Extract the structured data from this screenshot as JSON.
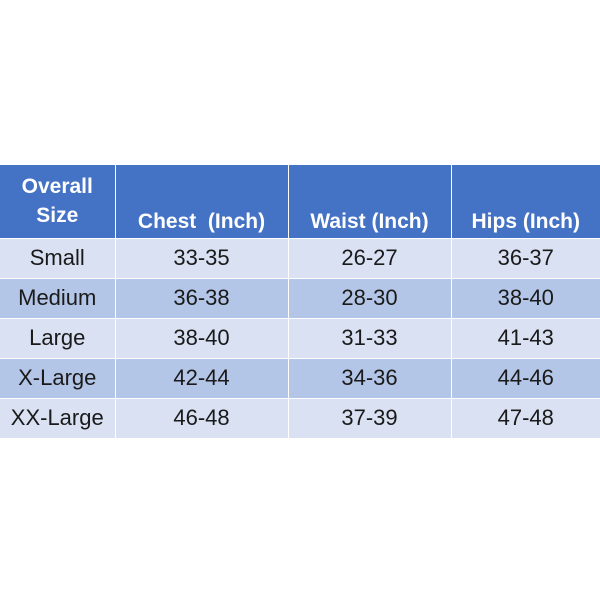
{
  "table": {
    "header": {
      "size_line1": "Overall",
      "size_line2": "Size",
      "chest": "Chest  (Inch)",
      "waist": "Waist (Inch)",
      "hips": "Hips (Inch)"
    },
    "rows": [
      {
        "size": "Small",
        "chest": "33-35",
        "waist": "26-27",
        "hips": "36-37"
      },
      {
        "size": "Medium",
        "chest": "36-38",
        "waist": "28-30",
        "hips": "38-40"
      },
      {
        "size": "Large",
        "chest": "38-40",
        "waist": "31-33",
        "hips": "41-43"
      },
      {
        "size": "X-Large",
        "chest": "42-44",
        "waist": "34-36",
        "hips": "44-46"
      },
      {
        "size": "XX-Large",
        "chest": "46-48",
        "waist": "37-39",
        "hips": "47-48"
      }
    ]
  },
  "colors": {
    "header_bg": "#4472c4",
    "row_light": "#d9e1f2",
    "row_dark": "#b4c6e7"
  }
}
